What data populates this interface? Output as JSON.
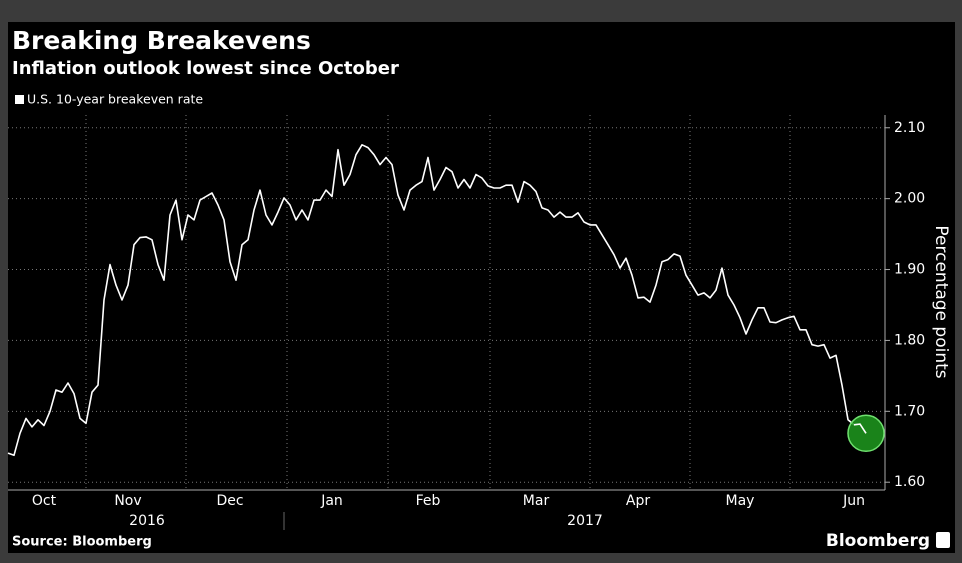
{
  "chart_data": {
    "type": "line",
    "title": "Breaking Breakevens",
    "subtitle": "Inflation outlook lowest since October",
    "y_axis_label": "Percentage points",
    "source": "Source: Bloomberg",
    "brand": "Bloomberg",
    "x_axis_years": [
      "2016",
      "2017"
    ],
    "categories": [
      null,
      null,
      null,
      null,
      null,
      null,
      "Oct",
      null,
      null,
      null,
      null,
      null,
      null,
      null,
      null,
      null,
      null,
      null,
      null,
      null,
      "Nov",
      null,
      null,
      null,
      null,
      null,
      null,
      null,
      null,
      null,
      null,
      null,
      null,
      null,
      null,
      null,
      null,
      "Dec",
      null,
      null,
      null,
      null,
      null,
      null,
      null,
      null,
      null,
      null,
      null,
      null,
      null,
      null,
      null,
      null,
      "Jan",
      null,
      null,
      null,
      null,
      null,
      null,
      null,
      null,
      null,
      null,
      null,
      null,
      null,
      null,
      null,
      "Feb",
      null,
      null,
      null,
      null,
      null,
      null,
      null,
      null,
      null,
      null,
      null,
      null,
      null,
      null,
      null,
      null,
      null,
      "Mar",
      null,
      null,
      null,
      null,
      null,
      null,
      null,
      null,
      null,
      null,
      null,
      null,
      null,
      null,
      null,
      null,
      "Apr",
      null,
      null,
      null,
      null,
      null,
      null,
      null,
      null,
      null,
      null,
      null,
      null,
      null,
      null,
      null,
      null,
      "May",
      null,
      null,
      null,
      null,
      null,
      null,
      null,
      null,
      null,
      null,
      null,
      null,
      null,
      null,
      null,
      null,
      null,
      null,
      "Jun",
      null,
      null
    ],
    "series": [
      {
        "name": "U.S. 10-year breakeven rate",
        "color": "#ffffff",
        "values": [
          1.641,
          1.638,
          1.669,
          1.69,
          1.678,
          1.688,
          1.68,
          1.7,
          1.73,
          1.727,
          1.74,
          1.725,
          1.69,
          1.683,
          1.727,
          1.737,
          1.857,
          1.907,
          1.878,
          1.857,
          1.878,
          1.935,
          1.945,
          1.946,
          1.942,
          1.907,
          1.885,
          1.977,
          1.998,
          1.942,
          1.977,
          1.97,
          1.998,
          2.003,
          2.008,
          1.991,
          1.97,
          1.911,
          1.885,
          1.935,
          1.942,
          1.984,
          2.012,
          1.977,
          1.963,
          1.981,
          2.001,
          1.991,
          1.97,
          1.984,
          1.97,
          1.998,
          1.998,
          2.012,
          2.003,
          2.069,
          2.019,
          2.034,
          2.062,
          2.076,
          2.072,
          2.062,
          2.048,
          2.058,
          2.048,
          2.005,
          1.984,
          2.012,
          2.019,
          2.024,
          2.058,
          2.012,
          2.027,
          2.044,
          2.038,
          2.015,
          2.027,
          2.015,
          2.034,
          2.029,
          2.018,
          2.015,
          2.015,
          2.019,
          2.019,
          1.995,
          2.024,
          2.019,
          2.01,
          1.987,
          1.984,
          1.974,
          1.981,
          1.974,
          1.974,
          1.98,
          1.967,
          1.963,
          1.963,
          1.949,
          1.935,
          1.921,
          1.902,
          1.916,
          1.892,
          1.86,
          1.861,
          1.854,
          1.878,
          1.911,
          1.914,
          1.922,
          1.919,
          1.892,
          1.878,
          1.864,
          1.867,
          1.86,
          1.871,
          1.902,
          1.864,
          1.85,
          1.832,
          1.809,
          1.829,
          1.846,
          1.846,
          1.826,
          1.825,
          1.829,
          1.832,
          1.834,
          1.815,
          1.815,
          1.794,
          1.792,
          1.794,
          1.775,
          1.779,
          1.737,
          1.688,
          1.681,
          1.682,
          1.669
        ]
      }
    ],
    "highlight_color": "#1f9a1f",
    "ylim": [
      1.589,
      2.118
    ],
    "yticks": [
      {
        "value": 1.6,
        "label": "1.60"
      },
      {
        "value": 1.7,
        "label": "1.70"
      },
      {
        "value": 1.8,
        "label": "1.80"
      },
      {
        "value": 1.9,
        "label": "1.90"
      },
      {
        "value": 2.0,
        "label": "2.00"
      },
      {
        "value": 2.1,
        "label": "2.10"
      }
    ],
    "grid": true
  }
}
